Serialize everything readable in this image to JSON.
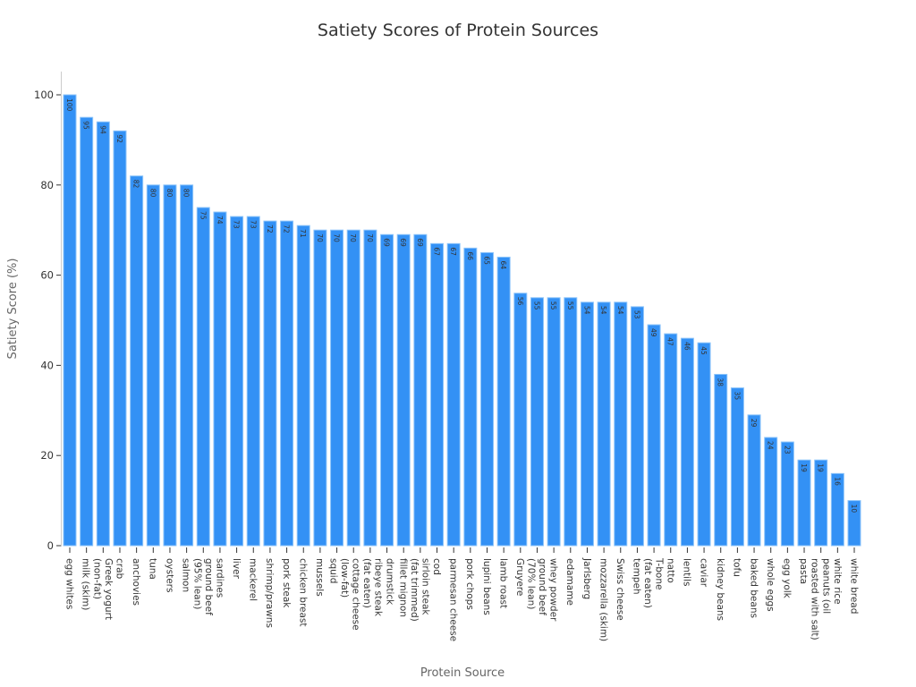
{
  "chart_data": {
    "type": "bar",
    "title": "Satiety Scores of Protein Sources",
    "xlabel": "Protein Source",
    "ylabel": "Satiety Score (%)",
    "ylim": [
      0,
      105
    ],
    "yticks": [
      0,
      20,
      40,
      60,
      80,
      100
    ],
    "grid": false,
    "bar_color": "#3391f5",
    "categories": [
      "egg whites",
      "milk (skim)",
      "Greek yogurt\n(non-fat)",
      "crab",
      "anchovies",
      "tuna",
      "oysters",
      "salmon",
      "ground beef\n(95% lean)",
      "sardines",
      "liver",
      "mackerel",
      "shrimp/prawns",
      "pork steak",
      "chicken breast",
      "mussels",
      "squid",
      "cottage cheese\n(low-fat)",
      "ribeye steak\n(fat eaten)",
      "drumstick",
      "fillet mignon",
      "sirloin steak\n(fat trimmed)",
      "cod",
      "parmesan cheese",
      "pork chops",
      "lupini beans",
      "lamb roast",
      "Gruyere",
      "ground beef\n(70% lean)",
      "whey powder",
      "edamame",
      "Jarlsberg",
      "mozzarella (skim)",
      "Swiss cheese",
      "tempeh",
      "T-bone\n(fat eaten)",
      "natto",
      "lentils",
      "caviar",
      "kidney beans",
      "tofu",
      "baked beans",
      "whole eggs",
      "egg yolk",
      "pasta",
      "peanuts (oil\nroasted with salt)",
      "white rice",
      "white bread"
    ],
    "values": [
      100,
      95,
      94,
      92,
      82,
      80,
      80,
      80,
      75,
      74,
      73,
      73,
      72,
      72,
      71,
      70,
      70,
      70,
      70,
      69,
      69,
      69,
      67,
      67,
      66,
      65,
      64,
      56,
      55,
      55,
      55,
      54,
      54,
      54,
      53,
      49,
      47,
      46,
      45,
      38,
      35,
      29,
      24,
      23,
      19,
      19,
      16,
      10
    ]
  }
}
